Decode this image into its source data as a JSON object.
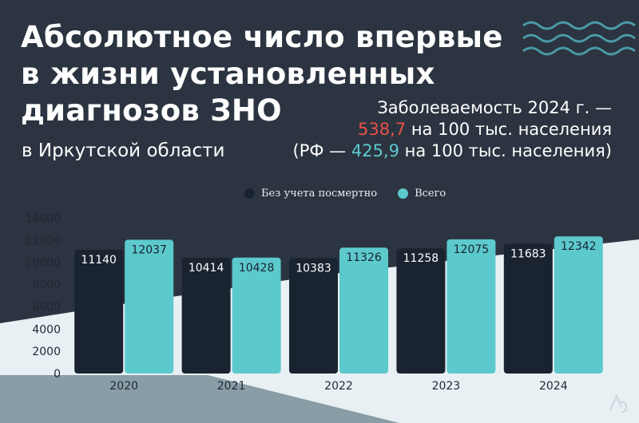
{
  "title_lines": [
    "Абсолютное число впервые",
    "в жизни установленных",
    "диагнозов ЗНО"
  ],
  "subtitle": "в Иркутской области",
  "info": {
    "line1": "Заболеваемость 2024 г. —",
    "line2_value": "538,7",
    "line2_rest": " на 100 тыс. населения",
    "line3_start": "(РФ — ",
    "line3_value": "425,9",
    "line3_rest": " на 100 тыс. населения)"
  },
  "colors": {
    "series_dark": "#1a2330",
    "series_teal": "#5cc9cd",
    "accent_red": "#e8514a",
    "background": "#2b3440",
    "background_light": "#e8f0f3"
  },
  "logo_icon": "lines-logo-icon",
  "chart_data": {
    "type": "bar",
    "categories": [
      "2020",
      "2021",
      "2022",
      "2023",
      "2024"
    ],
    "series": [
      {
        "name": "Без учета посмертно",
        "values": [
          11140,
          10414,
          10383,
          11258,
          11683
        ]
      },
      {
        "name": "Всего",
        "values": [
          12037,
          10428,
          11326,
          12075,
          12342
        ]
      }
    ],
    "ylim": [
      0,
      14000
    ],
    "yticks": [
      "0",
      "2000",
      "4000",
      "6000",
      "8000",
      "10000",
      "12000",
      "14000"
    ],
    "data_labels": [
      [
        "11140",
        "10414",
        "10383",
        "11258",
        "11683"
      ],
      [
        "12037",
        "10428",
        "11326",
        "12075",
        "12342"
      ]
    ],
    "legend_position": "top-center",
    "grid": false
  }
}
